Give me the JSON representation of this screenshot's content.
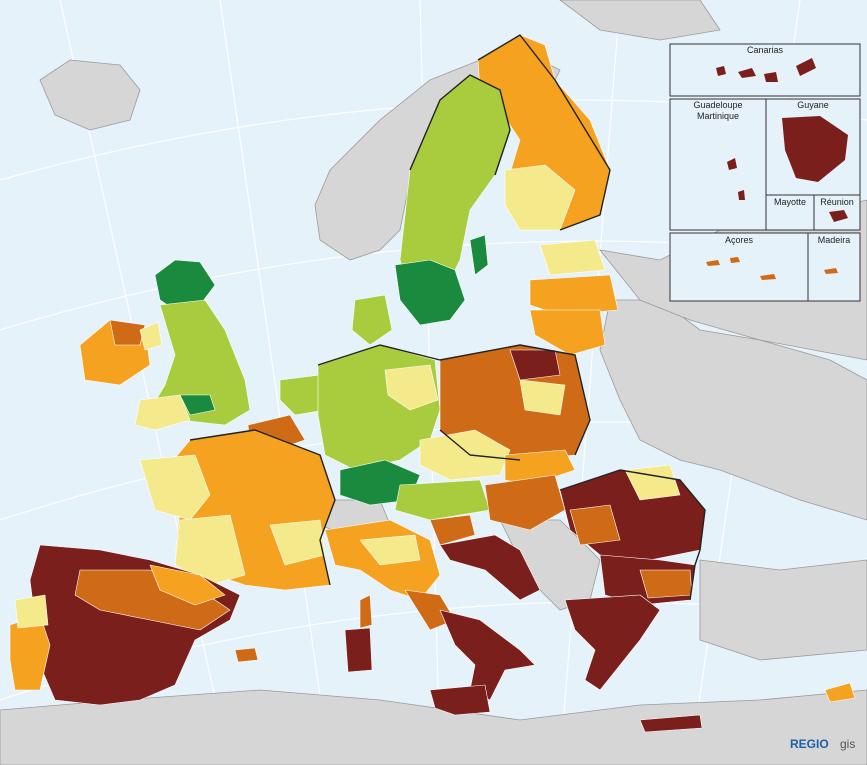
{
  "insets": {
    "canarias": "Canarias",
    "guadeloupe": "Guadeloupe",
    "martinique": "Martinique",
    "guyane": "Guyane",
    "mayotte": "Mayotte",
    "reunion": "Réunion",
    "acores": "Açores",
    "madeira": "Madeira"
  },
  "logo": {
    "brand": "REGIO",
    "suffix": "gis"
  },
  "colors": {
    "sea": "#e6f2fa",
    "non_eu_land": "#d6d6d6",
    "class_1_dark_green": "#1a8a3e",
    "class_2_light_green": "#a9cc3f",
    "class_3_pale_yellow": "#f4ea8c",
    "class_4_orange": "#f4a21f",
    "class_5_dark_orange": "#cf6b17",
    "class_6_dark_red": "#7a1f1c"
  }
}
